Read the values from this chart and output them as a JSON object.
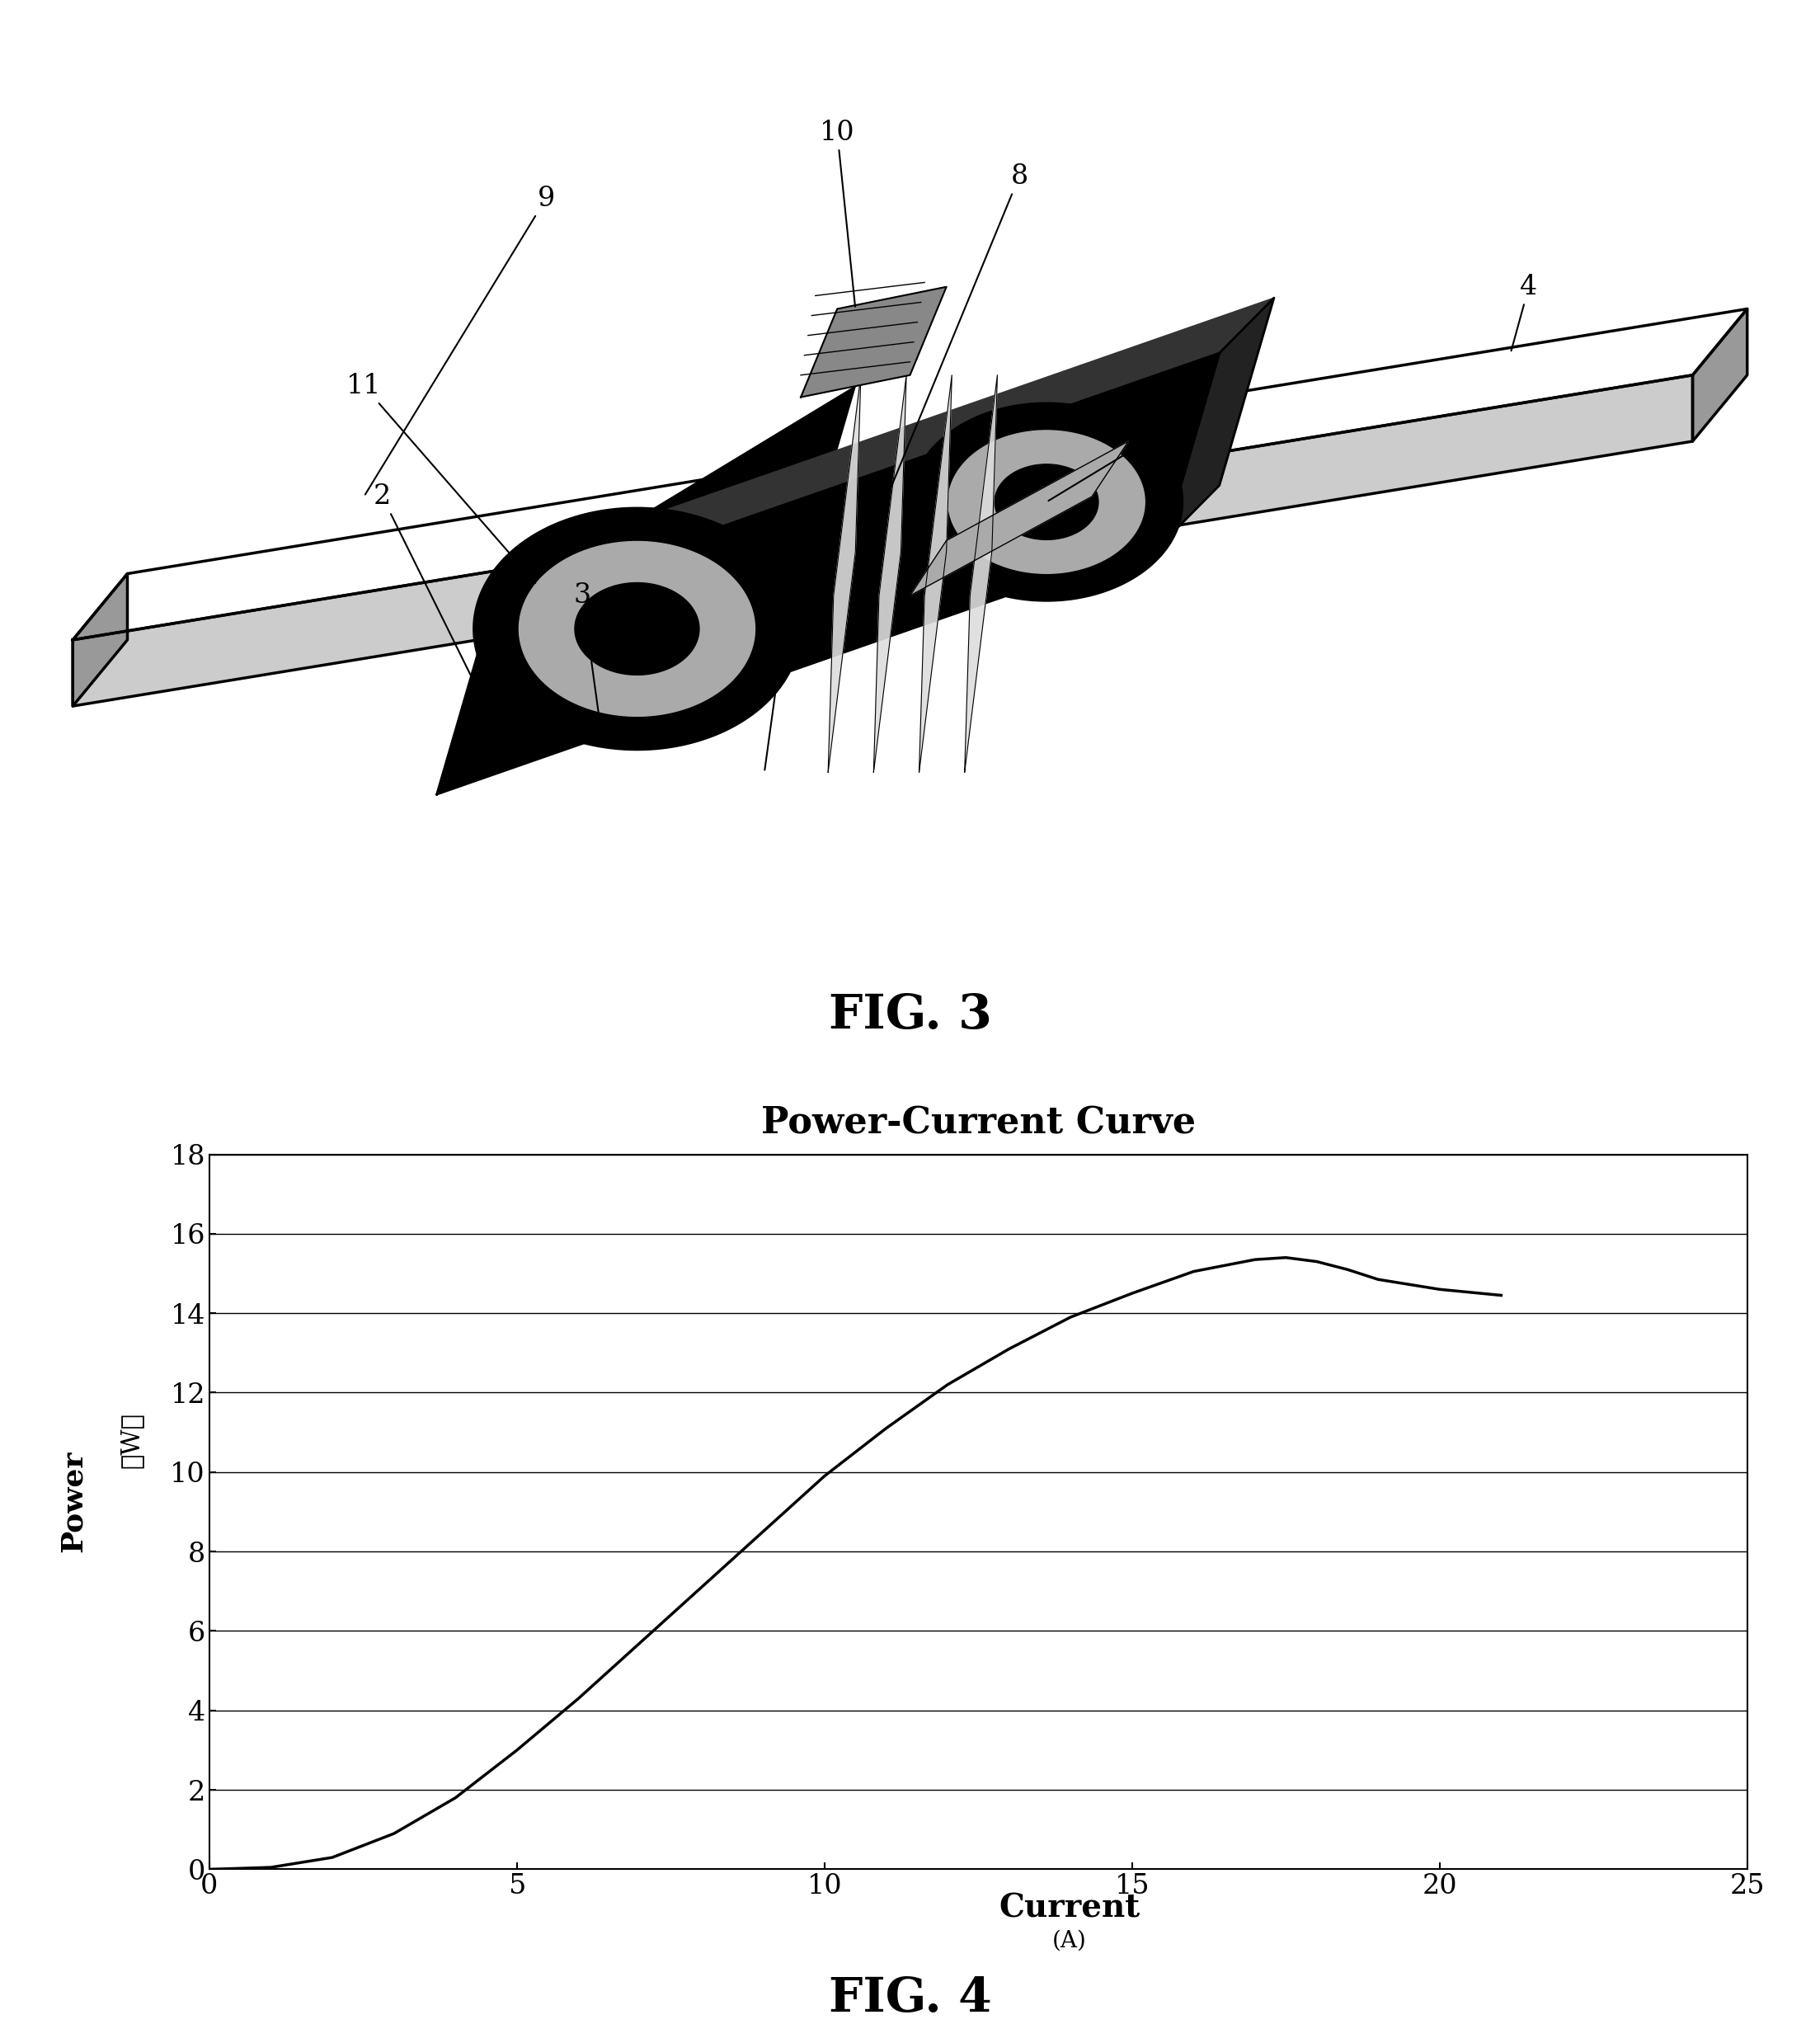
{
  "fig3_title": "FIG. 3",
  "fig4_title": "FIG. 4",
  "chart_title": "Power-Current Curve",
  "xlabel": "Current",
  "xlabel_sub": "(A)",
  "ylabel_top": "Power",
  "ylabel_bottom": "（W）",
  "xlim": [
    0,
    25
  ],
  "ylim": [
    0,
    18
  ],
  "xticks": [
    0,
    5,
    10,
    15,
    20,
    25
  ],
  "yticks": [
    0,
    2,
    4,
    6,
    8,
    10,
    12,
    14,
    16,
    18
  ],
  "curve_x": [
    0,
    1.0,
    2.0,
    3.0,
    4.0,
    5.0,
    6.0,
    7.0,
    8.0,
    9.0,
    10.0,
    11.0,
    12.0,
    13.0,
    14.0,
    15.0,
    16.0,
    17.0,
    17.5,
    18.0,
    18.5,
    19.0,
    20.0,
    21.0
  ],
  "curve_y": [
    0,
    0.05,
    0.3,
    0.9,
    1.8,
    3.0,
    4.3,
    5.7,
    7.1,
    8.5,
    9.9,
    11.1,
    12.2,
    13.1,
    13.9,
    14.5,
    15.05,
    15.35,
    15.4,
    15.3,
    15.1,
    14.85,
    14.6,
    14.45
  ],
  "background_color": "#ffffff",
  "line_color": "#000000",
  "grid_color": "#000000"
}
